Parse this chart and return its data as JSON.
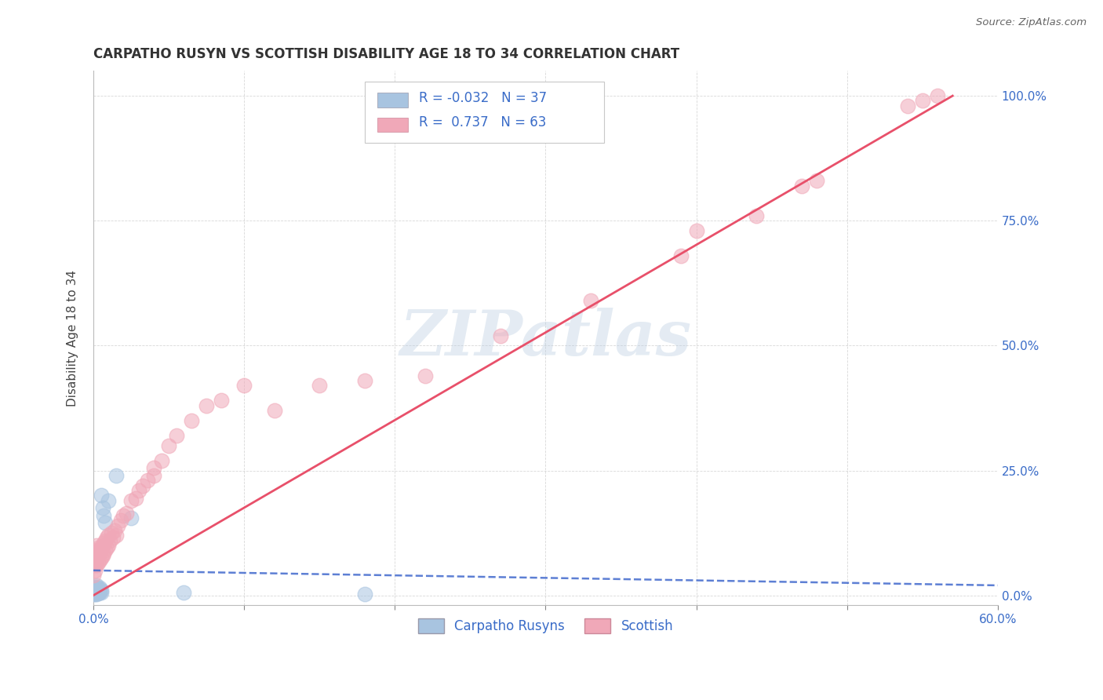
{
  "title": "CARPATHO RUSYN VS SCOTTISH DISABILITY AGE 18 TO 34 CORRELATION CHART",
  "source": "Source: ZipAtlas.com",
  "ylabel": "Disability Age 18 to 34",
  "xlim": [
    0.0,
    0.6
  ],
  "ylim": [
    -0.02,
    1.05
  ],
  "yticks_right": [
    0.0,
    0.25,
    0.5,
    0.75,
    1.0
  ],
  "ytick_labels_right": [
    "0.0%",
    "25.0%",
    "50.0%",
    "75.0%",
    "100.0%"
  ],
  "xtick_labels_show": [
    "0.0%",
    "60.0%"
  ],
  "xtick_positions_show": [
    0.0,
    0.6
  ],
  "blue_R": -0.032,
  "blue_N": 37,
  "pink_R": 0.737,
  "pink_N": 63,
  "blue_color": "#A8C4E0",
  "pink_color": "#F0A8B8",
  "blue_line_color": "#4169CD",
  "pink_line_color": "#E8506A",
  "watermark": "ZIPatlas",
  "background_color": "#ffffff",
  "grid_color": "#C8C8C8",
  "blue_scatter_x": [
    0.0,
    0.001,
    0.001,
    0.001,
    0.001,
    0.001,
    0.001,
    0.001,
    0.001,
    0.001,
    0.001,
    0.002,
    0.002,
    0.002,
    0.002,
    0.002,
    0.002,
    0.002,
    0.003,
    0.003,
    0.003,
    0.003,
    0.004,
    0.004,
    0.004,
    0.004,
    0.005,
    0.005,
    0.005,
    0.006,
    0.007,
    0.008,
    0.01,
    0.015,
    0.025,
    0.06,
    0.18
  ],
  "blue_scatter_y": [
    0.002,
    0.003,
    0.004,
    0.005,
    0.006,
    0.007,
    0.008,
    0.009,
    0.01,
    0.012,
    0.015,
    0.003,
    0.005,
    0.008,
    0.01,
    0.013,
    0.016,
    0.02,
    0.004,
    0.006,
    0.008,
    0.012,
    0.005,
    0.008,
    0.012,
    0.015,
    0.006,
    0.01,
    0.2,
    0.175,
    0.16,
    0.145,
    0.19,
    0.24,
    0.155,
    0.006,
    0.003
  ],
  "pink_scatter_x": [
    0.0,
    0.001,
    0.001,
    0.001,
    0.001,
    0.002,
    0.002,
    0.002,
    0.002,
    0.003,
    0.003,
    0.003,
    0.004,
    0.004,
    0.005,
    0.005,
    0.006,
    0.006,
    0.007,
    0.007,
    0.008,
    0.008,
    0.009,
    0.009,
    0.01,
    0.01,
    0.011,
    0.012,
    0.013,
    0.014,
    0.015,
    0.016,
    0.018,
    0.02,
    0.022,
    0.025,
    0.028,
    0.03,
    0.033,
    0.036,
    0.04,
    0.04,
    0.045,
    0.05,
    0.055,
    0.065,
    0.075,
    0.085,
    0.1,
    0.12,
    0.15,
    0.18,
    0.22,
    0.27,
    0.33,
    0.39,
    0.4,
    0.44,
    0.47,
    0.48,
    0.54,
    0.55,
    0.56
  ],
  "pink_scatter_y": [
    0.04,
    0.05,
    0.06,
    0.07,
    0.08,
    0.06,
    0.075,
    0.09,
    0.1,
    0.065,
    0.08,
    0.095,
    0.07,
    0.09,
    0.075,
    0.095,
    0.08,
    0.1,
    0.085,
    0.105,
    0.09,
    0.11,
    0.095,
    0.115,
    0.1,
    0.12,
    0.11,
    0.125,
    0.115,
    0.13,
    0.12,
    0.14,
    0.15,
    0.16,
    0.165,
    0.19,
    0.195,
    0.21,
    0.22,
    0.23,
    0.24,
    0.255,
    0.27,
    0.3,
    0.32,
    0.35,
    0.38,
    0.39,
    0.42,
    0.37,
    0.42,
    0.43,
    0.44,
    0.52,
    0.59,
    0.68,
    0.73,
    0.76,
    0.82,
    0.83,
    0.98,
    0.99,
    1.0
  ],
  "blue_line_x": [
    0.0,
    0.6
  ],
  "blue_line_y": [
    0.05,
    0.02
  ],
  "pink_line_x": [
    0.0,
    0.57
  ],
  "pink_line_y": [
    0.0,
    1.0
  ]
}
